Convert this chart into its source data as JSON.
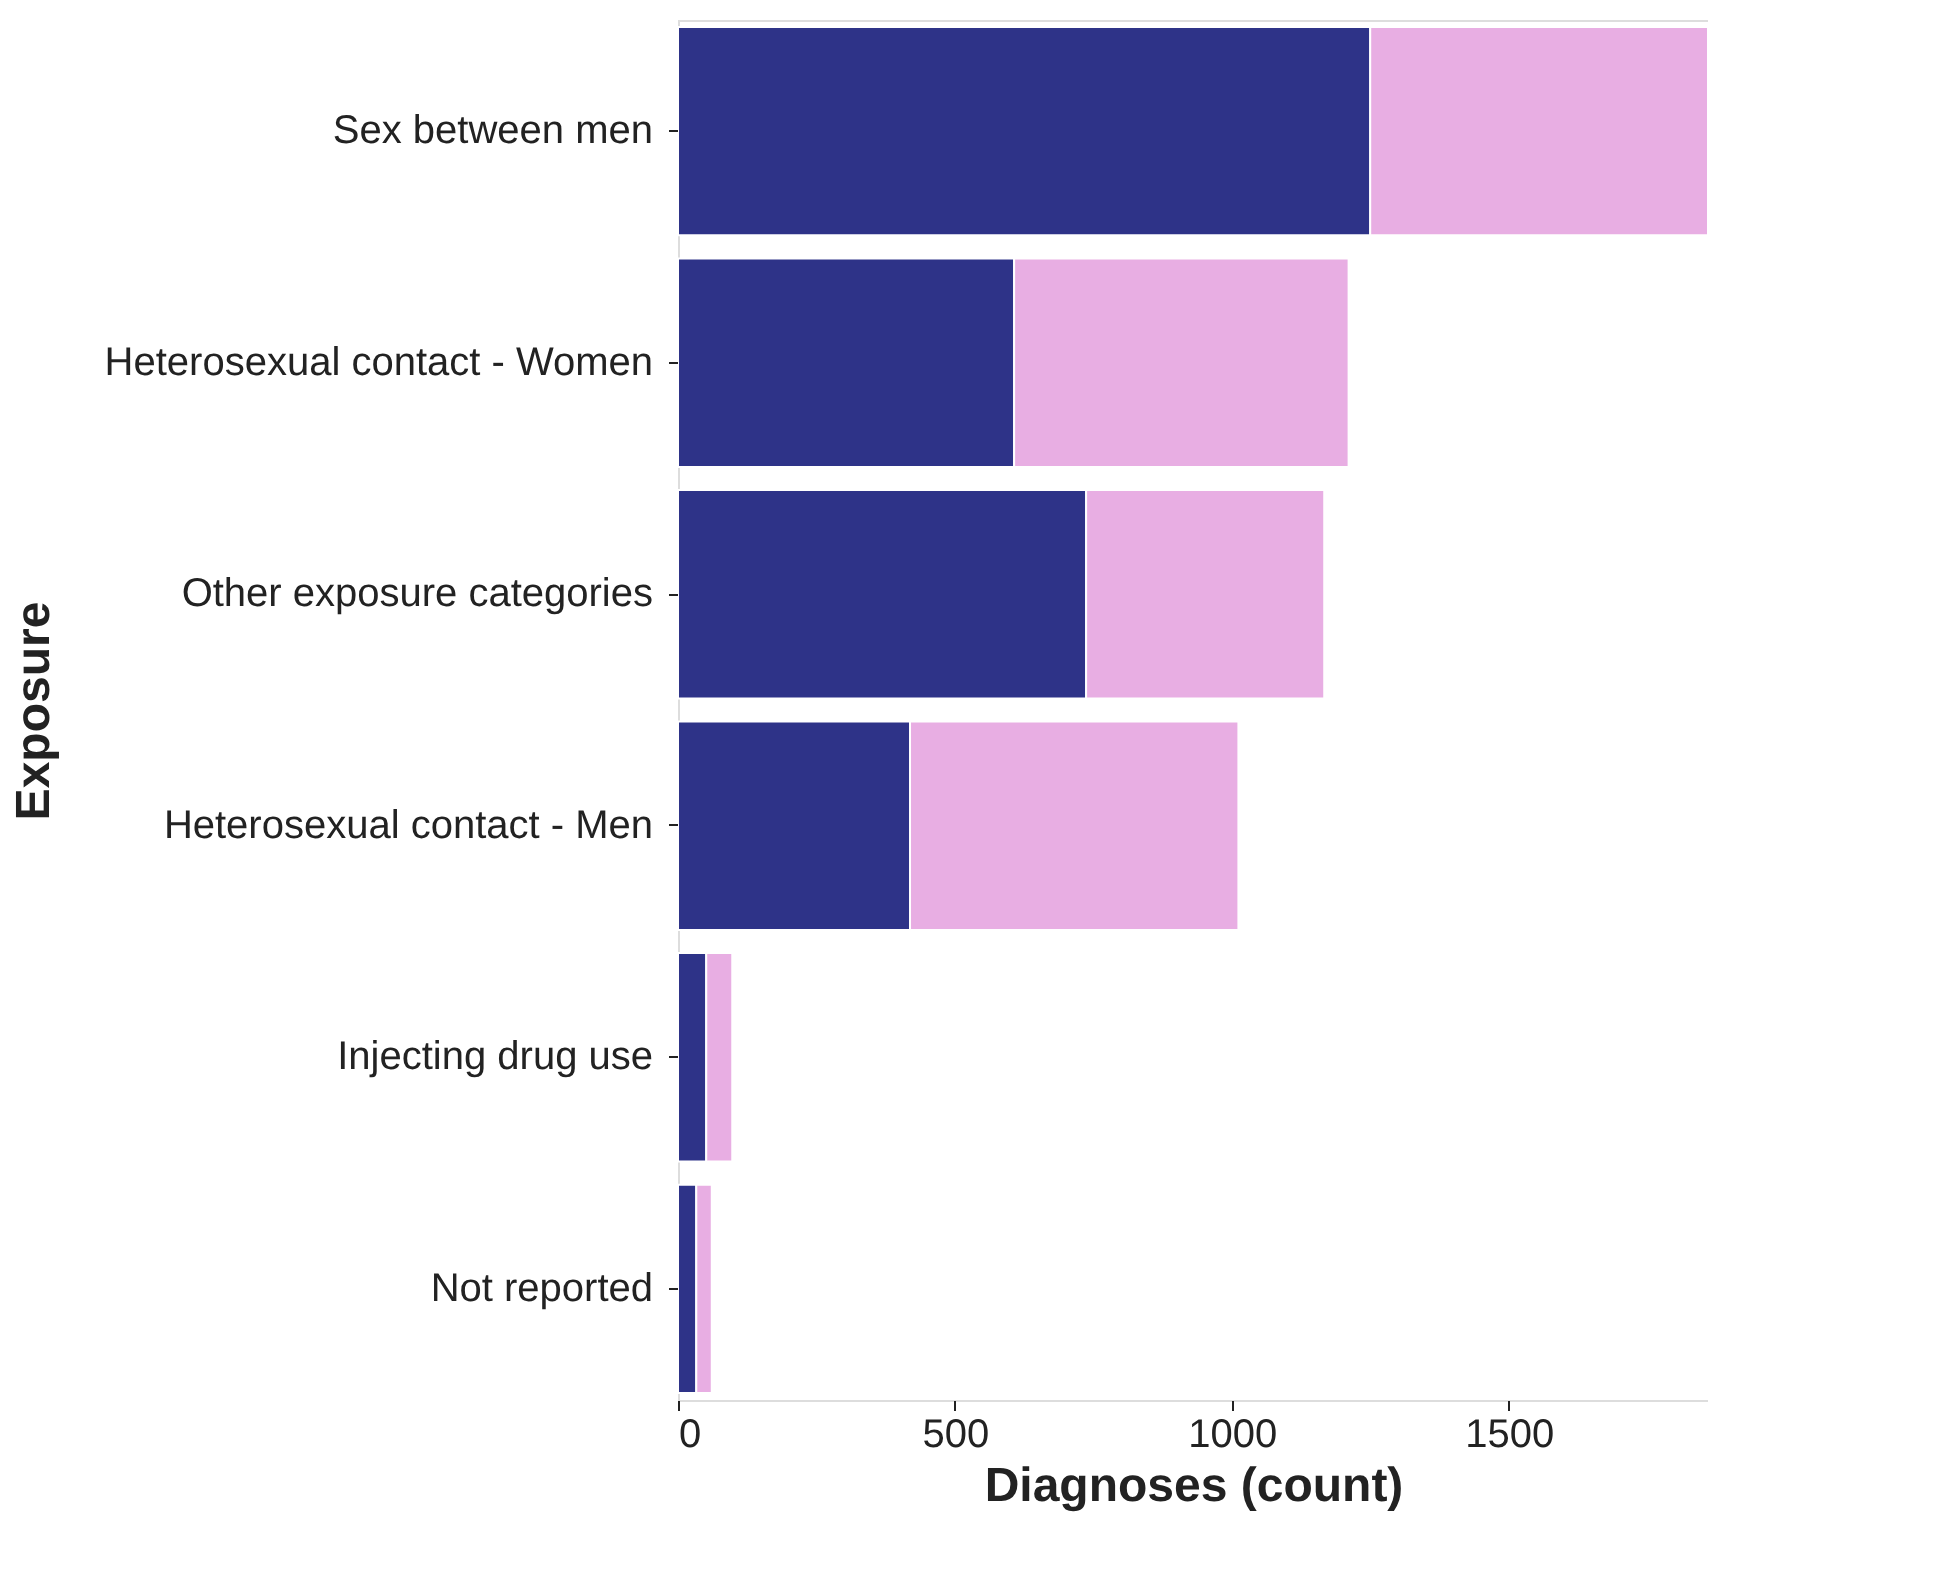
{
  "chart_data": {
    "type": "bar",
    "orientation": "horizontal",
    "stacked": true,
    "categories": [
      "Sex between men",
      "Heterosexual contact - Women",
      "Other exposure categories",
      "Heterosexual contact - Men",
      "Injecting drug use",
      "Not reported"
    ],
    "series": [
      {
        "color": "#2e3388",
        "values": [
          1250,
          607,
          737,
          419,
          51,
          33
        ]
      },
      {
        "color": "#e8aee3",
        "values": [
          610,
          604,
          430,
          593,
          47,
          28
        ]
      }
    ],
    "xlim": [
      0,
      1860
    ],
    "xticks": [
      0,
      500,
      {
        "value": 1000,
        "label": "1000"
      },
      {
        "value": 1500,
        "label": "1500"
      }
    ],
    "xlabel": "Diagnoses (count)",
    "ylabel": "Exposure",
    "grid": false,
    "legend": false
  }
}
